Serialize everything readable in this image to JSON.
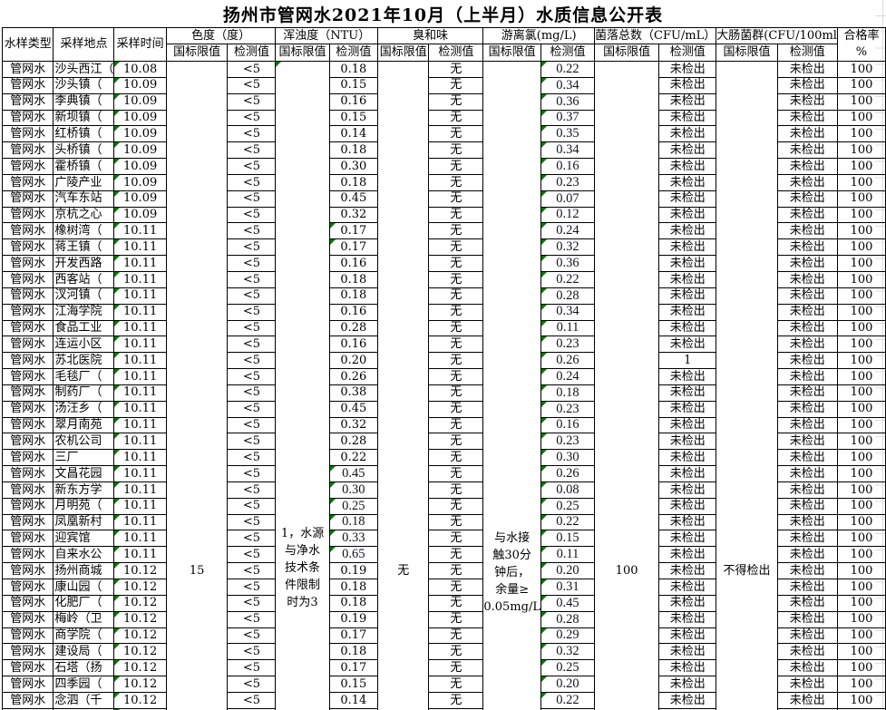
{
  "title": "扬州市管网水2021年10月（上半月）水质信息公开表",
  "header": {
    "sample_type": "水样类型",
    "location": "采样地点",
    "time": "采样时间",
    "groups": [
      {
        "label": "色度（度）"
      },
      {
        "label": "浑浊度（NTU）"
      },
      {
        "label": "臭和味"
      },
      {
        "label": "游离氯(mg/L)"
      },
      {
        "label": "菌落总数（CFU/mL）"
      },
      {
        "label": "大肠菌群(CFU/100ml"
      }
    ],
    "sub_limit": "国标限值",
    "sub_detect": "检测值",
    "pass_rate_line1": "合格率",
    "pass_rate_line2": "%"
  },
  "limits": {
    "color": "15",
    "turbidity_lines": [
      "1，水源",
      "与净水",
      "技术条",
      "件限制",
      "时为3"
    ],
    "odor": "无",
    "chlorine_lines": [
      "与水接",
      "触30分",
      "钟后，",
      "余量≥",
      "0.05mg/L"
    ],
    "colony": "100",
    "coliform": "不得检出"
  },
  "colors": {
    "triangle_green": "#007b00",
    "border": "#000000",
    "gridline_gray": "#dcdcdc"
  },
  "rows": [
    {
      "type": "管网水",
      "location": "沙头西江（",
      "time": "10.08",
      "color": "<5",
      "turbidity": "0.18",
      "odor": "无",
      "chlorine": "0.22",
      "colony": "未检出",
      "coliform": "未检出",
      "rate": "100",
      "t_green": false,
      "t_ct": false
    },
    {
      "type": "管网水",
      "location": "沙头镇（",
      "time": "10.09",
      "color": "<5",
      "turbidity": "0.15",
      "odor": "无",
      "chlorine": "0.34",
      "colony": "未检出",
      "coliform": "未检出",
      "rate": "100",
      "t_green": false,
      "t_ct": false
    },
    {
      "type": "管网水",
      "location": "李典镇（",
      "time": "10.09",
      "color": "<5",
      "turbidity": "0.16",
      "odor": "无",
      "chlorine": "0.36",
      "colony": "未检出",
      "coliform": "未检出",
      "rate": "100",
      "t_green": false,
      "t_ct": false
    },
    {
      "type": "管网水",
      "location": "新坝镇（",
      "time": "10.09",
      "color": "<5",
      "turbidity": "0.15",
      "odor": "无",
      "chlorine": "0.37",
      "colony": "未检出",
      "coliform": "未检出",
      "rate": "100",
      "t_green": false,
      "t_ct": false
    },
    {
      "type": "管网水",
      "location": "红桥镇（",
      "time": "10.09",
      "color": "<5",
      "turbidity": "0.14",
      "odor": "无",
      "chlorine": "0.35",
      "colony": "未检出",
      "coliform": "未检出",
      "rate": "100",
      "t_green": false,
      "t_ct": false
    },
    {
      "type": "管网水",
      "location": "头桥镇（",
      "time": "10.09",
      "color": "<5",
      "turbidity": "0.18",
      "odor": "无",
      "chlorine": "0.34",
      "colony": "未检出",
      "coliform": "未检出",
      "rate": "100",
      "t_green": false,
      "t_ct": false
    },
    {
      "type": "管网水",
      "location": "霍桥镇（",
      "time": "10.09",
      "color": "<5",
      "turbidity": "0.30",
      "odor": "无",
      "chlorine": "0.16",
      "colony": "未检出",
      "coliform": "未检出",
      "rate": "100",
      "t_green": false,
      "t_ct": false
    },
    {
      "type": "管网水",
      "location": "广陵产业",
      "time": "10.09",
      "color": "<5",
      "turbidity": "0.18",
      "odor": "无",
      "chlorine": "0.23",
      "colony": "未检出",
      "coliform": "未检出",
      "rate": "100",
      "t_green": false,
      "t_ct": false
    },
    {
      "type": "管网水",
      "location": "汽车东站",
      "time": "10.09",
      "color": "<5",
      "turbidity": "0.45",
      "odor": "无",
      "chlorine": "0.07",
      "colony": "未检出",
      "coliform": "未检出",
      "rate": "100",
      "t_green": false,
      "t_ct": false
    },
    {
      "type": "管网水",
      "location": "京杭之心",
      "time": "10.09",
      "color": "<5",
      "turbidity": "0.32",
      "odor": "无",
      "chlorine": "0.12",
      "colony": "未检出",
      "coliform": "未检出",
      "rate": "100",
      "t_green": false,
      "t_ct": false
    },
    {
      "type": "管网水",
      "location": "橡树湾（",
      "time": "10.11",
      "color": "<5",
      "turbidity": "0.17",
      "odor": "无",
      "chlorine": "0.24",
      "colony": "未检出",
      "coliform": "未检出",
      "rate": "100",
      "t_green": true,
      "t_ct": false
    },
    {
      "type": "管网水",
      "location": "蒋王镇（",
      "time": "10.11",
      "color": "<5",
      "turbidity": "0.17",
      "odor": "无",
      "chlorine": "0.32",
      "colony": "未检出",
      "coliform": "未检出",
      "rate": "100",
      "t_green": true,
      "t_ct": false
    },
    {
      "type": "管网水",
      "location": "开发西路",
      "time": "10.11",
      "color": "<5",
      "turbidity": "0.16",
      "odor": "无",
      "chlorine": "0.36",
      "colony": "未检出",
      "coliform": "未检出",
      "rate": "100",
      "t_green": false,
      "t_ct": false
    },
    {
      "type": "管网水",
      "location": "西客站（",
      "time": "10.11",
      "color": "<5",
      "turbidity": "0.18",
      "odor": "无",
      "chlorine": "0.22",
      "colony": "未检出",
      "coliform": "未检出",
      "rate": "100",
      "t_green": false,
      "t_ct": false
    },
    {
      "type": "管网水",
      "location": "汊河镇（",
      "time": "10.11",
      "color": "<5",
      "turbidity": "0.18",
      "odor": "无",
      "chlorine": "0.28",
      "colony": "未检出",
      "coliform": "未检出",
      "rate": "100",
      "t_green": false,
      "t_ct": false
    },
    {
      "type": "管网水",
      "location": "江海学院",
      "time": "10.11",
      "color": "<5",
      "turbidity": "0.16",
      "odor": "无",
      "chlorine": "0.34",
      "colony": "未检出",
      "coliform": "未检出",
      "rate": "100",
      "t_green": false,
      "t_ct": false
    },
    {
      "type": "管网水",
      "location": "食品工业",
      "time": "10.11",
      "color": "<5",
      "turbidity": "0.28",
      "odor": "无",
      "chlorine": "0.11",
      "colony": "未检出",
      "coliform": "未检出",
      "rate": "100",
      "t_green": false,
      "t_ct": false
    },
    {
      "type": "管网水",
      "location": "连运小区",
      "time": "10.11",
      "color": "<5",
      "turbidity": "0.16",
      "odor": "无",
      "chlorine": "0.23",
      "colony": "未检出",
      "coliform": "未检出",
      "rate": "100",
      "t_green": false,
      "t_ct": false
    },
    {
      "type": "管网水",
      "location": "苏北医院",
      "time": "10.11",
      "color": "<5",
      "turbidity": "0.20",
      "odor": "无",
      "chlorine": "0.26",
      "colony": "1",
      "coliform": "未检出",
      "rate": "100",
      "t_green": false,
      "t_ct": false
    },
    {
      "type": "管网水",
      "location": "毛毯厂（",
      "time": "10.11",
      "color": "<5",
      "turbidity": "0.26",
      "odor": "无",
      "chlorine": "0.24",
      "colony": "未检出",
      "coliform": "未检出",
      "rate": "100",
      "t_green": false,
      "t_ct": false
    },
    {
      "type": "管网水",
      "location": "制药厂（",
      "time": "10.11",
      "color": "<5",
      "turbidity": "0.38",
      "odor": "无",
      "chlorine": "0.18",
      "colony": "未检出",
      "coliform": "未检出",
      "rate": "100",
      "t_green": false,
      "t_ct": false
    },
    {
      "type": "管网水",
      "location": "汤汪乡（",
      "time": "10.11",
      "color": "<5",
      "turbidity": "0.45",
      "odor": "无",
      "chlorine": "0.23",
      "colony": "未检出",
      "coliform": "未检出",
      "rate": "100",
      "t_green": false,
      "t_ct": false
    },
    {
      "type": "管网水",
      "location": "翠月南苑",
      "time": "10.11",
      "color": "<5",
      "turbidity": "0.32",
      "odor": "无",
      "chlorine": "0.16",
      "colony": "未检出",
      "coliform": "未检出",
      "rate": "100",
      "t_green": false,
      "t_ct": false
    },
    {
      "type": "管网水",
      "location": "农机公司",
      "time": "10.11",
      "color": "<5",
      "turbidity": "0.28",
      "odor": "无",
      "chlorine": "0.23",
      "colony": "未检出",
      "coliform": "未检出",
      "rate": "100",
      "t_green": false,
      "t_ct": false
    },
    {
      "type": "管网水",
      "location": "三厂",
      "time": "10.11",
      "color": "<5",
      "turbidity": "0.22",
      "odor": "无",
      "chlorine": "0.30",
      "colony": "未检出",
      "coliform": "未检出",
      "rate": "100",
      "t_green": false,
      "t_ct": false
    },
    {
      "type": "管网水",
      "location": "文昌花园",
      "time": "10.11",
      "color": "<5",
      "turbidity": "0.45",
      "odor": "无",
      "chlorine": "0.26",
      "colony": "未检出",
      "coliform": "未检出",
      "rate": "100",
      "t_green": true,
      "t_ct": true
    },
    {
      "type": "管网水",
      "location": "新东方学",
      "time": "10.11",
      "color": "<5",
      "turbidity": "0.30",
      "odor": "无",
      "chlorine": "0.08",
      "colony": "未检出",
      "coliform": "未检出",
      "rate": "100",
      "t_green": true,
      "t_ct": true
    },
    {
      "type": "管网水",
      "location": "月明苑（",
      "time": "10.11",
      "color": "<5",
      "turbidity": "0.25",
      "odor": "无",
      "chlorine": "0.25",
      "colony": "未检出",
      "coliform": "未检出",
      "rate": "100",
      "t_green": true,
      "t_ct": true
    },
    {
      "type": "管网水",
      "location": "凤凰新村",
      "time": "10.11",
      "color": "<5",
      "turbidity": "0.18",
      "odor": "无",
      "chlorine": "0.22",
      "colony": "未检出",
      "coliform": "未检出",
      "rate": "100",
      "t_green": true,
      "t_ct": true
    },
    {
      "type": "管网水",
      "location": "迎宾馆",
      "time": "10.11",
      "color": "<5",
      "turbidity": "0.33",
      "odor": "无",
      "chlorine": "0.15",
      "colony": "未检出",
      "coliform": "未检出",
      "rate": "100",
      "t_green": true,
      "t_ct": true
    },
    {
      "type": "管网水",
      "location": "自来水公",
      "time": "10.11",
      "color": "<5",
      "turbidity": "0.65",
      "odor": "无",
      "chlorine": "0.11",
      "colony": "未检出",
      "coliform": "未检出",
      "rate": "100",
      "t_green": true,
      "t_ct": true
    },
    {
      "type": "管网水",
      "location": "扬州商城",
      "time": "10.12",
      "color": "<5",
      "turbidity": "0.19",
      "odor": "无",
      "chlorine": "0.20",
      "colony": "未检出",
      "coliform": "未检出",
      "rate": "100",
      "t_green": false,
      "t_ct": false
    },
    {
      "type": "管网水",
      "location": "康山园（",
      "time": "10.12",
      "color": "<5",
      "turbidity": "0.18",
      "odor": "无",
      "chlorine": "0.31",
      "colony": "未检出",
      "coliform": "未检出",
      "rate": "100",
      "t_green": false,
      "t_ct": false
    },
    {
      "type": "管网水",
      "location": "化肥厂（",
      "time": "10.12",
      "color": "<5",
      "turbidity": "0.18",
      "odor": "无",
      "chlorine": "0.45",
      "colony": "未检出",
      "coliform": "未检出",
      "rate": "100",
      "t_green": false,
      "t_ct": false
    },
    {
      "type": "管网水",
      "location": "梅岭（卫",
      "time": "10.12",
      "color": "<5",
      "turbidity": "0.19",
      "odor": "无",
      "chlorine": "0.28",
      "colony": "未检出",
      "coliform": "未检出",
      "rate": "100",
      "t_green": false,
      "t_ct": false
    },
    {
      "type": "管网水",
      "location": "商学院（",
      "time": "10.12",
      "color": "<5",
      "turbidity": "0.17",
      "odor": "无",
      "chlorine": "0.29",
      "colony": "未检出",
      "coliform": "未检出",
      "rate": "100",
      "t_green": false,
      "t_ct": false
    },
    {
      "type": "管网水",
      "location": "建设局（",
      "time": "10.12",
      "color": "<5",
      "turbidity": "0.18",
      "odor": "无",
      "chlorine": "0.32",
      "colony": "未检出",
      "coliform": "未检出",
      "rate": "100",
      "t_green": false,
      "t_ct": false
    },
    {
      "type": "管网水",
      "location": "石塔（扬",
      "time": "10.12",
      "color": "<5",
      "turbidity": "0.17",
      "odor": "无",
      "chlorine": "0.25",
      "colony": "未检出",
      "coliform": "未检出",
      "rate": "100",
      "t_green": false,
      "t_ct": false
    },
    {
      "type": "管网水",
      "location": "四季园（",
      "time": "10.12",
      "color": "<5",
      "turbidity": "0.15",
      "odor": "无",
      "chlorine": "0.20",
      "colony": "未检出",
      "coliform": "未检出",
      "rate": "100",
      "t_green": false,
      "t_ct": false
    },
    {
      "type": "管网水",
      "location": "念泗（千",
      "time": "10.12",
      "color": "<5",
      "turbidity": "0.14",
      "odor": "无",
      "chlorine": "0.22",
      "colony": "未检出",
      "coliform": "未检出",
      "rate": "100",
      "t_green": false,
      "t_ct": false
    },
    {
      "type": "",
      "location": "",
      "time": "",
      "color": "",
      "turbidity": "",
      "odor": "",
      "chlorine": "",
      "colony": "",
      "coliform": "",
      "rate": "",
      "t_green": false,
      "t_ct": false
    }
  ]
}
